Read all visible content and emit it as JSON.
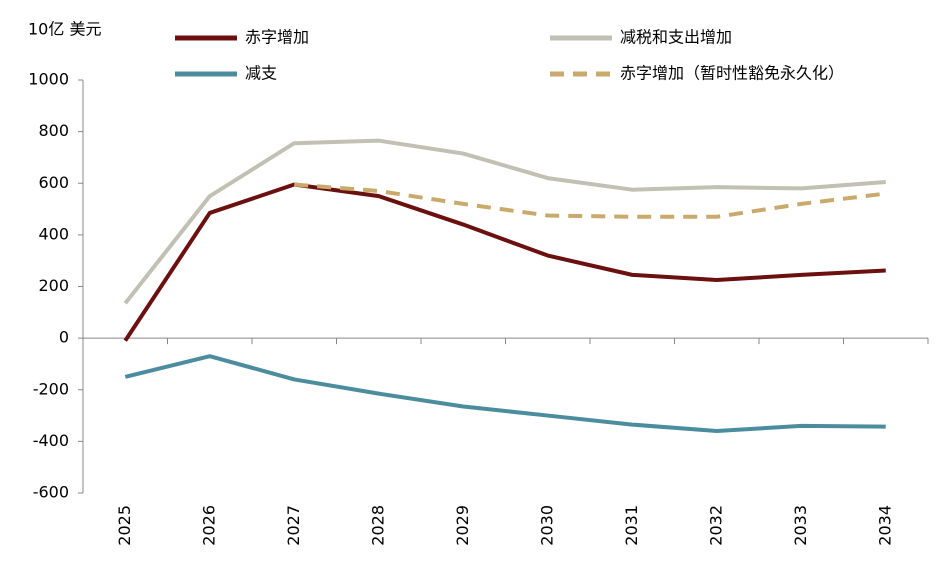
{
  "chart_data": {
    "type": "line",
    "y_label": "10亿 美元",
    "categories": [
      "2025",
      "2026",
      "2027",
      "2028",
      "2029",
      "2030",
      "2031",
      "2032",
      "2033",
      "2034"
    ],
    "series": [
      {
        "name": "赤字增加",
        "color": "#6b0f0f",
        "values": [
          -10,
          485,
          595,
          550,
          440,
          320,
          245,
          225,
          245,
          262
        ]
      },
      {
        "name": "减税和支出增加",
        "color": "#c2bfb3",
        "values": [
          135,
          550,
          755,
          765,
          715,
          620,
          575,
          585,
          580,
          605
        ]
      },
      {
        "name": "减支",
        "color": "#4b8d9e",
        "values": [
          -150,
          -70,
          -160,
          -215,
          -265,
          -300,
          -335,
          -360,
          -340,
          -343
        ]
      },
      {
        "name": "赤字增加（暂时性豁免永久化）",
        "color": "#c9aa6c",
        "dashed": true,
        "values": [
          null,
          null,
          595,
          570,
          520,
          475,
          470,
          470,
          520,
          560
        ]
      }
    ],
    "ylim": [
      -600,
      1000
    ],
    "yticks": [
      -600,
      -400,
      -200,
      0,
      200,
      400,
      600,
      800,
      1000
    ],
    "grid": false
  }
}
